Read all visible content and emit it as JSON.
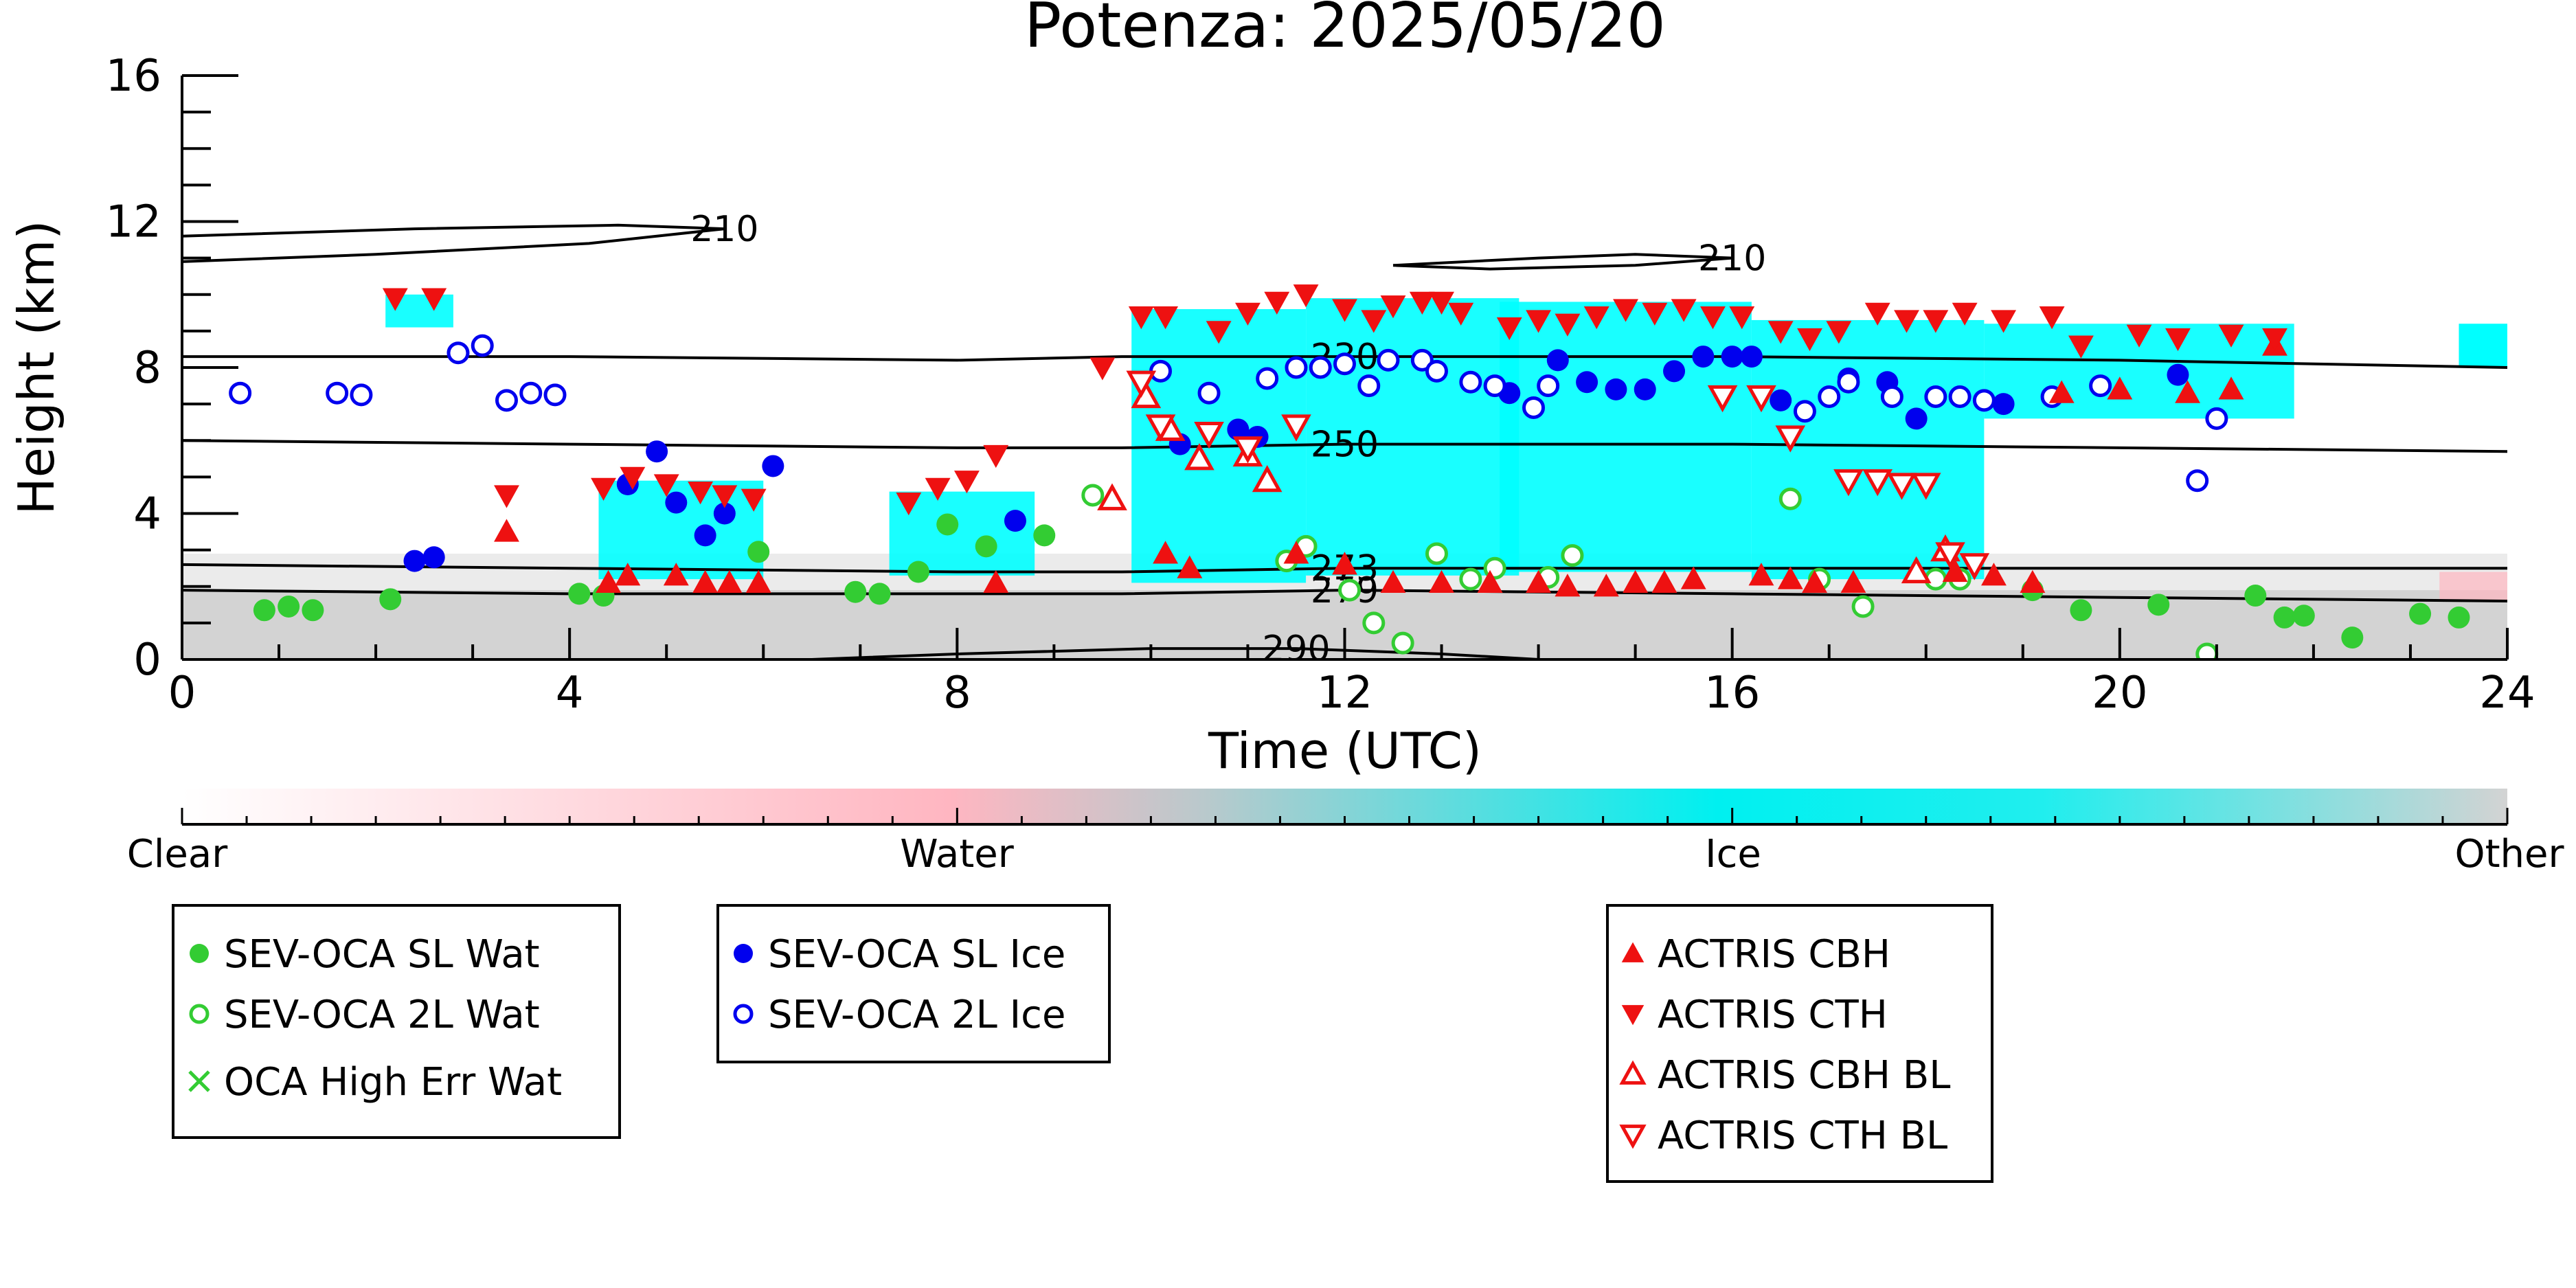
{
  "chart_data": {
    "type": "scatter",
    "title": "Potenza: 2025/05/20",
    "xlabel": "Time (UTC)",
    "ylabel": "Height (km)",
    "xlim": [
      0,
      24
    ],
    "ylim": [
      0,
      16
    ],
    "xticks": [
      "0",
      "4",
      "8",
      "12",
      "16",
      "20",
      "24"
    ],
    "yticks": [
      "0",
      "4",
      "8",
      "12",
      "16"
    ],
    "grid": false,
    "contours": [
      {
        "label": "210",
        "points": [
          [
            0,
            11.6
          ],
          [
            2.4,
            11.8
          ],
          [
            4.5,
            11.9
          ],
          [
            5.6,
            11.8
          ],
          [
            4.2,
            11.4
          ],
          [
            2.0,
            11.1
          ],
          [
            0,
            10.9
          ]
        ]
      },
      {
        "label": "210",
        "points": [
          [
            12.5,
            10.8
          ],
          [
            14,
            11.0
          ],
          [
            15,
            11.1
          ],
          [
            16,
            11.0
          ],
          [
            15,
            10.8
          ],
          [
            13.5,
            10.7
          ],
          [
            12.5,
            10.8
          ]
        ]
      },
      {
        "label": "230",
        "points": [
          [
            0,
            8.3
          ],
          [
            4,
            8.3
          ],
          [
            8,
            8.2
          ],
          [
            9.7,
            8.3
          ],
          [
            12,
            8.3
          ],
          [
            16,
            8.3
          ],
          [
            20,
            8.2
          ],
          [
            24,
            8.0
          ]
        ]
      },
      {
        "label": "250",
        "points": [
          [
            0,
            6.0
          ],
          [
            4,
            5.9
          ],
          [
            8,
            5.8
          ],
          [
            9.7,
            5.8
          ],
          [
            12,
            5.9
          ],
          [
            16,
            5.9
          ],
          [
            20,
            5.8
          ],
          [
            24,
            5.7
          ]
        ]
      },
      {
        "label": "273",
        "points": [
          [
            0,
            2.6
          ],
          [
            4,
            2.5
          ],
          [
            8,
            2.4
          ],
          [
            9.7,
            2.4
          ],
          [
            12,
            2.5
          ],
          [
            16,
            2.5
          ],
          [
            20,
            2.5
          ],
          [
            24,
            2.5
          ]
        ]
      },
      {
        "label": "279",
        "points": [
          [
            0,
            1.9
          ],
          [
            4,
            1.8
          ],
          [
            8,
            1.8
          ],
          [
            9.7,
            1.8
          ],
          [
            12,
            1.9
          ],
          [
            16,
            1.8
          ],
          [
            20,
            1.7
          ],
          [
            24,
            1.6
          ]
        ]
      },
      {
        "label": "290",
        "points": [
          [
            6.5,
            0
          ],
          [
            8,
            0.15
          ],
          [
            10,
            0.3
          ],
          [
            11.5,
            0.3
          ],
          [
            13,
            0.15
          ],
          [
            14,
            0
          ]
        ]
      }
    ],
    "series": [
      {
        "name": "SEV-OCA SL Wat",
        "marker": "filled-circle",
        "color": "#33cc33",
        "points": [
          [
            0.85,
            1.35
          ],
          [
            1.1,
            1.45
          ],
          [
            1.35,
            1.35
          ],
          [
            2.15,
            1.65
          ],
          [
            4.1,
            1.8
          ],
          [
            4.35,
            1.75
          ],
          [
            5.95,
            2.95
          ],
          [
            6.95,
            1.85
          ],
          [
            7.2,
            1.8
          ],
          [
            7.6,
            2.4
          ],
          [
            7.9,
            3.7
          ],
          [
            8.3,
            3.1
          ],
          [
            8.9,
            3.4
          ],
          [
            19.1,
            1.9
          ],
          [
            19.6,
            1.35
          ],
          [
            20.4,
            1.5
          ],
          [
            21.4,
            1.75
          ],
          [
            21.7,
            1.15
          ],
          [
            21.9,
            1.2
          ],
          [
            22.4,
            0.6
          ],
          [
            23.1,
            1.25
          ],
          [
            23.5,
            1.15
          ]
        ]
      },
      {
        "name": "SEV-OCA 2L Wat",
        "marker": "open-circle",
        "color": "#33cc33",
        "points": [
          [
            9.4,
            4.5
          ],
          [
            11.4,
            2.7
          ],
          [
            11.6,
            3.1
          ],
          [
            12.05,
            1.9
          ],
          [
            12.3,
            1.0
          ],
          [
            12.6,
            0.45
          ],
          [
            12.95,
            2.9
          ],
          [
            13.3,
            2.2
          ],
          [
            13.55,
            2.5
          ],
          [
            14.1,
            2.25
          ],
          [
            14.35,
            2.85
          ],
          [
            16.6,
            4.4
          ],
          [
            16.9,
            2.2
          ],
          [
            17.35,
            1.45
          ],
          [
            18.1,
            2.2
          ],
          [
            18.35,
            2.2
          ],
          [
            20.9,
            0.15
          ]
        ]
      },
      {
        "name": "OCA High Err Wat",
        "marker": "x",
        "color": "#33cc33",
        "points": []
      },
      {
        "name": "SEV-OCA SL Ice",
        "marker": "filled-circle",
        "color": "#0000ee",
        "points": [
          [
            2.4,
            2.7
          ],
          [
            2.6,
            2.8
          ],
          [
            4.6,
            4.8
          ],
          [
            4.9,
            5.7
          ],
          [
            5.1,
            4.3
          ],
          [
            5.4,
            3.4
          ],
          [
            5.6,
            4.0
          ],
          [
            6.1,
            5.3
          ],
          [
            8.6,
            3.8
          ],
          [
            10.3,
            5.9
          ],
          [
            10.9,
            6.3
          ],
          [
            11.1,
            6.1
          ],
          [
            13.7,
            7.3
          ],
          [
            14.2,
            8.2
          ],
          [
            14.5,
            7.6
          ],
          [
            14.8,
            7.4
          ],
          [
            15.1,
            7.4
          ],
          [
            15.4,
            7.9
          ],
          [
            15.7,
            8.3
          ],
          [
            16.0,
            8.3
          ],
          [
            16.2,
            8.3
          ],
          [
            16.5,
            7.1
          ],
          [
            17.2,
            7.7
          ],
          [
            17.6,
            7.6
          ],
          [
            17.9,
            6.6
          ],
          [
            18.8,
            7.0
          ],
          [
            20.6,
            7.8
          ]
        ]
      },
      {
        "name": "SEV-OCA 2L Ice",
        "marker": "open-circle",
        "color": "#0000ee",
        "points": [
          [
            0.6,
            7.3
          ],
          [
            1.6,
            7.3
          ],
          [
            1.85,
            7.25
          ],
          [
            2.85,
            8.4
          ],
          [
            3.1,
            8.6
          ],
          [
            3.35,
            7.1
          ],
          [
            3.6,
            7.3
          ],
          [
            3.85,
            7.25
          ],
          [
            10.1,
            7.9
          ],
          [
            10.6,
            7.3
          ],
          [
            11.2,
            7.7
          ],
          [
            11.5,
            8.0
          ],
          [
            11.75,
            8.0
          ],
          [
            12.0,
            8.1
          ],
          [
            12.25,
            7.5
          ],
          [
            12.45,
            8.2
          ],
          [
            12.8,
            8.2
          ],
          [
            12.95,
            7.9
          ],
          [
            13.3,
            7.6
          ],
          [
            13.55,
            7.5
          ],
          [
            13.95,
            6.9
          ],
          [
            14.1,
            7.5
          ],
          [
            16.75,
            6.8
          ],
          [
            17.0,
            7.2
          ],
          [
            17.2,
            7.6
          ],
          [
            17.65,
            7.2
          ],
          [
            18.1,
            7.2
          ],
          [
            18.35,
            7.2
          ],
          [
            18.6,
            7.1
          ],
          [
            19.3,
            7.2
          ],
          [
            19.8,
            7.5
          ],
          [
            20.8,
            4.9
          ],
          [
            21.0,
            6.6
          ]
        ]
      },
      {
        "name": "ACTRIS CBH",
        "marker": "triangle-up",
        "color": "#ee1111",
        "points": [
          [
            3.35,
            3.5
          ],
          [
            4.4,
            2.1
          ],
          [
            4.6,
            2.3
          ],
          [
            5.1,
            2.3
          ],
          [
            5.4,
            2.1
          ],
          [
            5.65,
            2.1
          ],
          [
            5.95,
            2.1
          ],
          [
            8.4,
            2.1
          ],
          [
            10.15,
            2.9
          ],
          [
            10.4,
            2.5
          ],
          [
            11.5,
            2.9
          ],
          [
            12.0,
            2.6
          ],
          [
            12.5,
            2.1
          ],
          [
            13.0,
            2.1
          ],
          [
            13.5,
            2.1
          ],
          [
            14.0,
            2.1
          ],
          [
            14.3,
            2.0
          ],
          [
            14.7,
            2.0
          ],
          [
            15.0,
            2.1
          ],
          [
            15.3,
            2.1
          ],
          [
            15.6,
            2.2
          ],
          [
            16.3,
            2.3
          ],
          [
            16.6,
            2.2
          ],
          [
            16.85,
            2.1
          ],
          [
            17.25,
            2.1
          ],
          [
            18.3,
            2.4
          ],
          [
            18.7,
            2.3
          ],
          [
            19.1,
            2.1
          ],
          [
            19.4,
            7.3
          ],
          [
            20.0,
            7.4
          ],
          [
            20.7,
            7.3
          ],
          [
            21.15,
            7.4
          ],
          [
            21.6,
            8.6
          ]
        ]
      },
      {
        "name": "ACTRIS CTH",
        "marker": "triangle-down",
        "color": "#ee1111",
        "points": [
          [
            2.2,
            9.9
          ],
          [
            2.6,
            9.9
          ],
          [
            3.35,
            4.5
          ],
          [
            4.35,
            4.7
          ],
          [
            4.65,
            5.0
          ],
          [
            5.0,
            4.8
          ],
          [
            5.35,
            4.6
          ],
          [
            5.6,
            4.5
          ],
          [
            5.9,
            4.4
          ],
          [
            7.5,
            4.3
          ],
          [
            7.8,
            4.7
          ],
          [
            8.1,
            4.9
          ],
          [
            8.4,
            5.6
          ],
          [
            9.5,
            8.0
          ],
          [
            9.9,
            9.4
          ],
          [
            10.15,
            9.4
          ],
          [
            10.7,
            9.0
          ],
          [
            11.0,
            9.5
          ],
          [
            11.3,
            9.8
          ],
          [
            11.6,
            10.0
          ],
          [
            12.0,
            9.6
          ],
          [
            12.3,
            9.3
          ],
          [
            12.5,
            9.7
          ],
          [
            12.8,
            9.8
          ],
          [
            13.0,
            9.8
          ],
          [
            13.2,
            9.5
          ],
          [
            13.7,
            9.1
          ],
          [
            14.0,
            9.3
          ],
          [
            14.3,
            9.2
          ],
          [
            14.6,
            9.4
          ],
          [
            14.9,
            9.6
          ],
          [
            15.2,
            9.5
          ],
          [
            15.5,
            9.6
          ],
          [
            15.8,
            9.4
          ],
          [
            16.1,
            9.4
          ],
          [
            16.5,
            9.0
          ],
          [
            16.8,
            8.8
          ],
          [
            17.1,
            9.0
          ],
          [
            17.5,
            9.5
          ],
          [
            17.8,
            9.3
          ],
          [
            18.1,
            9.3
          ],
          [
            18.4,
            9.5
          ],
          [
            18.8,
            9.3
          ],
          [
            19.3,
            9.4
          ],
          [
            19.6,
            8.6
          ],
          [
            20.2,
            8.9
          ],
          [
            20.6,
            8.8
          ],
          [
            21.15,
            8.9
          ],
          [
            21.6,
            8.8
          ]
        ]
      },
      {
        "name": "ACTRIS CBH BL",
        "marker": "open-triangle-up",
        "color": "#ee1111",
        "points": [
          [
            9.6,
            4.4
          ],
          [
            9.95,
            7.2
          ],
          [
            10.2,
            6.3
          ],
          [
            10.5,
            5.5
          ],
          [
            11.0,
            5.6
          ],
          [
            11.2,
            4.9
          ],
          [
            17.9,
            2.4
          ],
          [
            18.2,
            3.0
          ]
        ]
      },
      {
        "name": "ACTRIS CTH BL",
        "marker": "open-triangle-down",
        "color": "#ee1111",
        "points": [
          [
            9.9,
            7.6
          ],
          [
            10.1,
            6.4
          ],
          [
            10.6,
            6.2
          ],
          [
            11.0,
            5.8
          ],
          [
            11.5,
            6.4
          ],
          [
            15.9,
            7.2
          ],
          [
            16.3,
            7.2
          ],
          [
            16.6,
            6.1
          ],
          [
            17.2,
            4.9
          ],
          [
            17.5,
            4.9
          ],
          [
            17.75,
            4.8
          ],
          [
            18.0,
            4.8
          ],
          [
            18.25,
            2.9
          ],
          [
            18.5,
            2.6
          ]
        ]
      }
    ],
    "colorbar": {
      "labels": [
        "Clear",
        "Water",
        "Ice",
        "Other"
      ],
      "colors": [
        "#ffffff",
        "#ffb6c1",
        "#00ffff",
        "#d3d3d3"
      ]
    },
    "legend_placement": "below"
  }
}
